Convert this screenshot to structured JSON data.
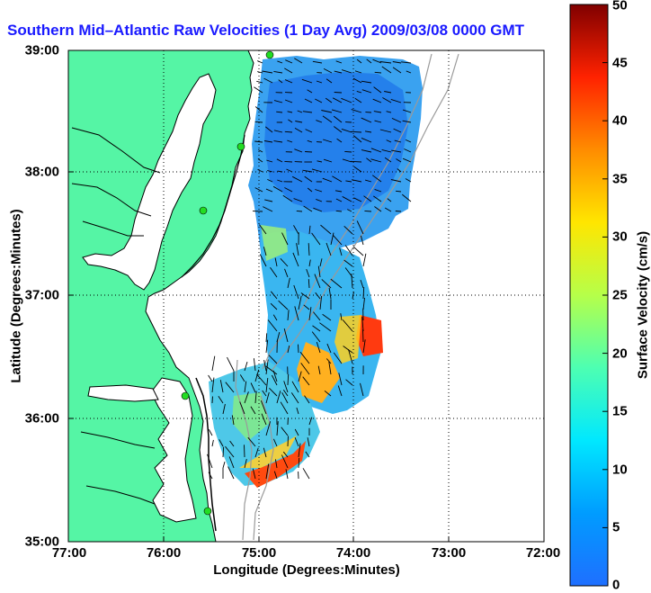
{
  "title": "Southern Mid–Atlantic Raw Velocities (1 Day Avg) 2009/03/08 0000 GMT",
  "x_axis": {
    "label": "Longitude (Degrees:Minutes)",
    "ticks": [
      "77:00",
      "76:00",
      "75:00",
      "74:00",
      "73:00",
      "72:00"
    ]
  },
  "y_axis": {
    "label": "Latitude (Degrees:Minutes)",
    "ticks": [
      "39:00",
      "38:00",
      "37:00",
      "36:00",
      "35:00"
    ]
  },
  "colorbar": {
    "label": "Surface Velocity (cm/s)",
    "ticks": [
      "50",
      "45",
      "40",
      "35",
      "30",
      "25",
      "20",
      "15",
      "10",
      "5",
      "0"
    ],
    "range": [
      0,
      50
    ],
    "colormap": "jet"
  },
  "colors": {
    "land": "#55f5a5",
    "water": "#ffffff",
    "title": "#1a1aff",
    "coast": "#000000",
    "isobath": "#9a9a9a",
    "station": "#22dd22"
  },
  "map_extent": {
    "lon": [
      -77,
      -72
    ],
    "lat": [
      35,
      39
    ]
  },
  "stations": [
    "station-north",
    "station-central",
    "station-southern-virginia",
    "station-outer-banks",
    "station-south"
  ]
}
